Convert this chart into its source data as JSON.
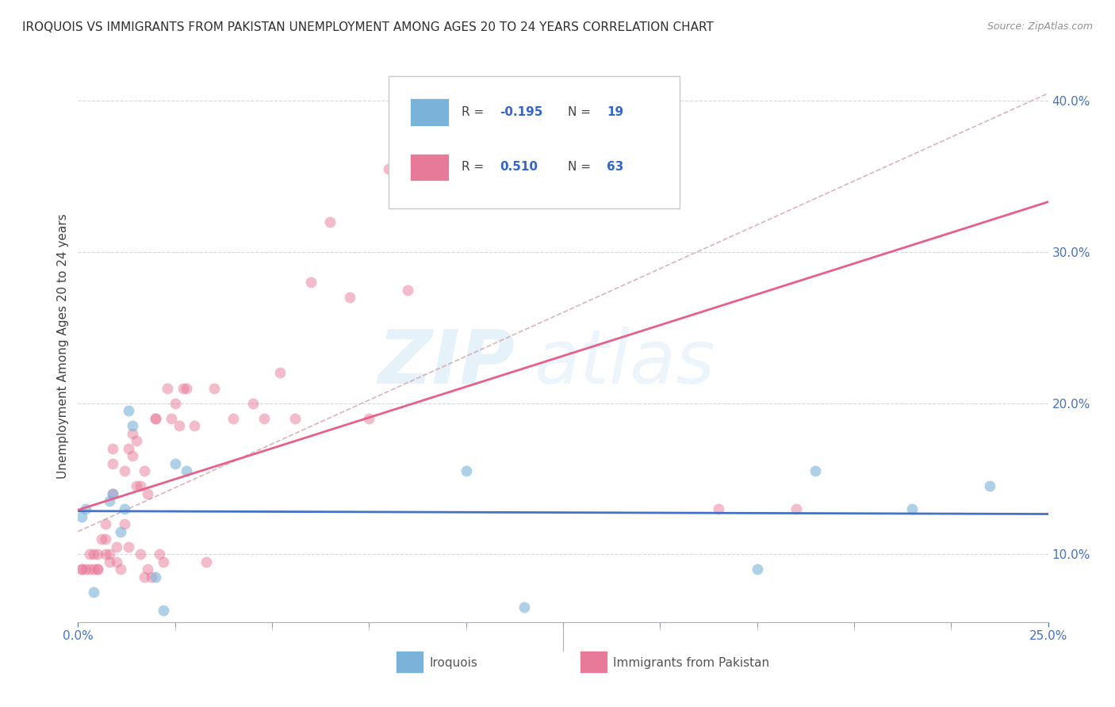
{
  "title": "IROQUOIS VS IMMIGRANTS FROM PAKISTAN UNEMPLOYMENT AMONG AGES 20 TO 24 YEARS CORRELATION CHART",
  "source": "Source: ZipAtlas.com",
  "ylabel": "Unemployment Among Ages 20 to 24 years",
  "xlim": [
    0.0,
    0.25
  ],
  "ylim": [
    0.055,
    0.42
  ],
  "iroquois_x": [
    0.001,
    0.002,
    0.004,
    0.008,
    0.009,
    0.011,
    0.012,
    0.013,
    0.014,
    0.02,
    0.022,
    0.025,
    0.028,
    0.1,
    0.115,
    0.175,
    0.19,
    0.215,
    0.235
  ],
  "iroquois_y": [
    0.125,
    0.13,
    0.075,
    0.135,
    0.14,
    0.115,
    0.13,
    0.195,
    0.185,
    0.085,
    0.063,
    0.16,
    0.155,
    0.155,
    0.065,
    0.09,
    0.155,
    0.13,
    0.145
  ],
  "pakistan_x": [
    0.001,
    0.001,
    0.002,
    0.003,
    0.003,
    0.004,
    0.004,
    0.005,
    0.005,
    0.005,
    0.006,
    0.007,
    0.007,
    0.007,
    0.008,
    0.008,
    0.009,
    0.009,
    0.009,
    0.01,
    0.01,
    0.011,
    0.012,
    0.012,
    0.013,
    0.013,
    0.014,
    0.014,
    0.015,
    0.015,
    0.016,
    0.016,
    0.017,
    0.017,
    0.018,
    0.018,
    0.019,
    0.02,
    0.02,
    0.021,
    0.022,
    0.023,
    0.024,
    0.025,
    0.026,
    0.027,
    0.028,
    0.03,
    0.033,
    0.035,
    0.04,
    0.045,
    0.048,
    0.052,
    0.056,
    0.06,
    0.065,
    0.07,
    0.075,
    0.08,
    0.085,
    0.165,
    0.185
  ],
  "pakistan_y": [
    0.09,
    0.09,
    0.09,
    0.09,
    0.1,
    0.09,
    0.1,
    0.1,
    0.09,
    0.09,
    0.11,
    0.11,
    0.12,
    0.1,
    0.1,
    0.095,
    0.14,
    0.16,
    0.17,
    0.105,
    0.095,
    0.09,
    0.155,
    0.12,
    0.105,
    0.17,
    0.165,
    0.18,
    0.145,
    0.175,
    0.145,
    0.1,
    0.085,
    0.155,
    0.14,
    0.09,
    0.085,
    0.19,
    0.19,
    0.1,
    0.095,
    0.21,
    0.19,
    0.2,
    0.185,
    0.21,
    0.21,
    0.185,
    0.095,
    0.21,
    0.19,
    0.2,
    0.19,
    0.22,
    0.19,
    0.28,
    0.32,
    0.27,
    0.19,
    0.355,
    0.275,
    0.13,
    0.13
  ],
  "iroquois_color": "#7ab3d9",
  "pakistan_color": "#e87a99",
  "iroquois_line_color": "#4472c4",
  "pakistan_line_color": "#e8608a",
  "diag_line_color": "#d4a0a8",
  "watermark_top": "ZIP",
  "watermark_bot": "atlas",
  "background_color": "#ffffff",
  "grid_color": "#d8d8d8"
}
